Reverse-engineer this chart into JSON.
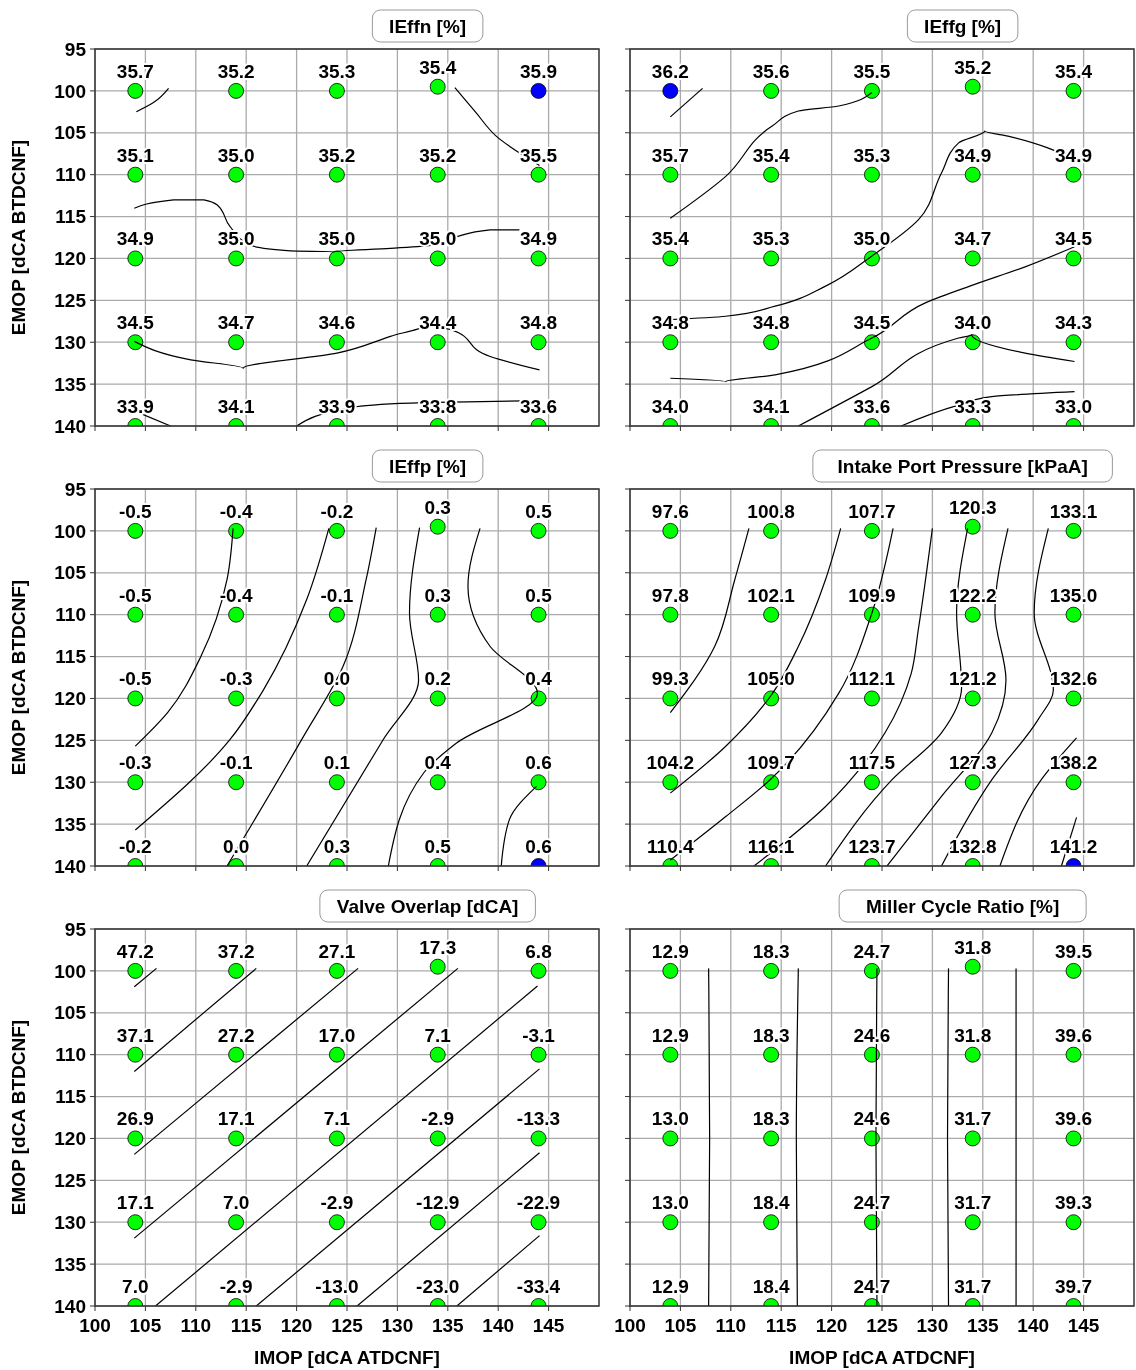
{
  "chart_data": [
    {
      "type": "scatter",
      "title": "IEffn [%]",
      "ylabel": "EMOP [dCA BTDCNF]",
      "xlim": [
        100,
        150
      ],
      "xticks": [
        100,
        105,
        110,
        115,
        120,
        125,
        130,
        135,
        140,
        145
      ],
      "ylim": [
        140,
        95
      ],
      "yticks": [
        95,
        100,
        105,
        110,
        115,
        120,
        125,
        130,
        135,
        140
      ],
      "grid": true,
      "tick_labels": "y",
      "marker": "circle",
      "series": [
        {
          "color": "#00ff00",
          "x": [
            104,
            114,
            124,
            134,
            104,
            114,
            124,
            134,
            144,
            104,
            114,
            124,
            134,
            144,
            104,
            114,
            124,
            134,
            144,
            104,
            114,
            124,
            134,
            144
          ],
          "values": [
            100,
            100,
            100,
            99.5,
            110,
            110,
            110,
            110,
            110,
            120,
            120,
            120,
            120,
            120,
            130,
            130,
            130,
            130,
            130,
            140,
            140,
            140,
            140,
            140
          ]
        },
        {
          "color": "#0000ff",
          "x": [
            144
          ],
          "values": [
            100
          ]
        },
        {
          "type": "line",
          "color": "#000000",
          "marker": "none",
          "x": [
            104.1,
            105.8,
            107.3
          ],
          "values": [
            102.5,
            101.4,
            99.7
          ]
        },
        {
          "type": "line",
          "color": "#000000",
          "marker": "none",
          "x": [
            135.7,
            137.8,
            139.8,
            144.1
          ],
          "values": [
            99.6,
            102.6,
            105.4,
            108.9
          ]
        },
        {
          "type": "line",
          "color": "#000000",
          "marker": "none",
          "x": [
            103.9,
            107.8,
            110.8,
            112.1,
            113.4,
            115.4,
            119.4,
            123.8,
            129.3,
            133.5,
            135.9,
            139.2,
            142.1
          ],
          "values": [
            114.0,
            113.0,
            113.0,
            113.6,
            116.2,
            118.4,
            119.1,
            119.2,
            118.8,
            118.4,
            117.4,
            116.6,
            116.6
          ]
        },
        {
          "type": "line",
          "color": "#000000",
          "marker": "none",
          "x": [
            103.9,
            109.5,
            114.7,
            124.0,
            129.3,
            132.6,
            135.3,
            139.2,
            144.1
          ],
          "values": [
            129.9,
            132.1,
            133.1,
            131.3,
            129.3,
            128.0,
            128.5,
            131.7,
            133.3
          ]
        },
        {
          "type": "line",
          "color": "#000000",
          "marker": "none",
          "x": [
            103.9,
            107.5
          ],
          "values": [
            138.2,
            140
          ]
        },
        {
          "type": "line",
          "color": "#000000",
          "marker": "none",
          "x": [
            120.0,
            125.9,
            132.6,
            142.5
          ],
          "values": [
            140,
            137.7,
            137.2,
            137.0
          ]
        }
      ],
      "annotations": [
        {
          "text": "35.7",
          "x": 104,
          "y": 100
        },
        {
          "text": "35.2",
          "x": 114,
          "y": 100
        },
        {
          "text": "35.3",
          "x": 124,
          "y": 100
        },
        {
          "text": "35.4",
          "x": 134,
          "y": 99.5
        },
        {
          "text": "35.9",
          "x": 144,
          "y": 100
        },
        {
          "text": "35.1",
          "x": 104,
          "y": 110
        },
        {
          "text": "35.0",
          "x": 114,
          "y": 110
        },
        {
          "text": "35.2",
          "x": 124,
          "y": 110
        },
        {
          "text": "35.2",
          "x": 134,
          "y": 110
        },
        {
          "text": "35.5",
          "x": 144,
          "y": 110
        },
        {
          "text": "34.9",
          "x": 104,
          "y": 120
        },
        {
          "text": "35.0",
          "x": 114,
          "y": 120
        },
        {
          "text": "35.0",
          "x": 124,
          "y": 120
        },
        {
          "text": "35.0",
          "x": 134,
          "y": 120
        },
        {
          "text": "34.9",
          "x": 144,
          "y": 120
        },
        {
          "text": "34.5",
          "x": 104,
          "y": 130
        },
        {
          "text": "34.7",
          "x": 114,
          "y": 130
        },
        {
          "text": "34.6",
          "x": 124,
          "y": 130
        },
        {
          "text": "34.4",
          "x": 134,
          "y": 130
        },
        {
          "text": "34.8",
          "x": 144,
          "y": 130
        },
        {
          "text": "33.9",
          "x": 104,
          "y": 140
        },
        {
          "text": "34.1",
          "x": 114,
          "y": 140
        },
        {
          "text": "33.9",
          "x": 124,
          "y": 140
        },
        {
          "text": "33.8",
          "x": 134,
          "y": 140
        },
        {
          "text": "33.6",
          "x": 144,
          "y": 140
        }
      ]
    },
    {
      "type": "scatter",
      "title": "IEffg [%]",
      "xlim": [
        100,
        150
      ],
      "xticks": [
        100,
        105,
        110,
        115,
        120,
        125,
        130,
        135,
        140,
        145
      ],
      "ylim": [
        140,
        95
      ],
      "yticks": [
        95,
        100,
        105,
        110,
        115,
        120,
        125,
        130,
        135,
        140
      ],
      "grid": true,
      "tick_labels": false,
      "marker": "circle",
      "series": [
        {
          "color": "#00ff00",
          "x": [
            114,
            124,
            134,
            144,
            104,
            114,
            124,
            134,
            144,
            104,
            114,
            124,
            134,
            144,
            104,
            114,
            124,
            134,
            144,
            104,
            114,
            124,
            134,
            144
          ],
          "values": [
            100,
            100,
            99.5,
            100,
            110,
            110,
            110,
            110,
            110,
            120,
            120,
            120,
            120,
            120,
            130,
            130,
            130,
            130,
            130,
            140,
            140,
            140,
            140,
            140
          ]
        },
        {
          "color": "#0000ff",
          "x": [
            104
          ],
          "values": [
            100
          ]
        },
        {
          "type": "line",
          "color": "#000000",
          "marker": "none",
          "x": [
            104.0,
            107.2
          ],
          "values": [
            103.1,
            99.7
          ]
        },
        {
          "type": "line",
          "color": "#000000",
          "marker": "none",
          "x": [
            104.0,
            109.5,
            114.1,
            116.7,
            120.7,
            124.0
          ],
          "values": [
            115.2,
            110.2,
            104.2,
            102.4,
            101.8,
            100.2
          ]
        },
        {
          "type": "line",
          "color": "#000000",
          "marker": "none",
          "x": [
            104.0,
            109.5,
            114.4,
            119.4,
            124.0,
            128.6,
            130.9,
            132.6,
            135.2,
            137.5,
            144.1
          ],
          "values": [
            127.3,
            126.9,
            125.7,
            123.3,
            119.7,
            115.4,
            109.8,
            106.2,
            104.8,
            105.4,
            108.2
          ]
        },
        {
          "type": "line",
          "color": "#000000",
          "marker": "none",
          "x": [
            104.0,
            109.5,
            114.4,
            124.0,
            129.3,
            134.2,
            139.2,
            144.1
          ],
          "values": [
            134.3,
            134.7,
            133.9,
            129.5,
            125.3,
            123.1,
            121.0,
            118.6
          ]
        },
        {
          "type": "line",
          "color": "#000000",
          "marker": "none",
          "x": [
            116.7,
            124.0,
            132.6,
            133.9,
            139.2,
            144.1
          ],
          "values": [
            140,
            135.3,
            129.5,
            129.1,
            131.3,
            132.3
          ]
        },
        {
          "type": "line",
          "color": "#000000",
          "marker": "none",
          "x": [
            126.9,
            132.6,
            135.9,
            144.1
          ],
          "values": [
            140,
            137.5,
            136.5,
            135.9
          ]
        }
      ],
      "annotations": [
        {
          "text": "36.2",
          "x": 104,
          "y": 100
        },
        {
          "text": "35.6",
          "x": 114,
          "y": 100
        },
        {
          "text": "35.5",
          "x": 124,
          "y": 100
        },
        {
          "text": "35.2",
          "x": 134,
          "y": 99.5
        },
        {
          "text": "35.4",
          "x": 144,
          "y": 100
        },
        {
          "text": "35.7",
          "x": 104,
          "y": 110
        },
        {
          "text": "35.4",
          "x": 114,
          "y": 110
        },
        {
          "text": "35.3",
          "x": 124,
          "y": 110
        },
        {
          "text": "34.9",
          "x": 134,
          "y": 110
        },
        {
          "text": "34.9",
          "x": 144,
          "y": 110
        },
        {
          "text": "35.4",
          "x": 104,
          "y": 120
        },
        {
          "text": "35.3",
          "x": 114,
          "y": 120
        },
        {
          "text": "35.0",
          "x": 124,
          "y": 120
        },
        {
          "text": "34.7",
          "x": 134,
          "y": 120
        },
        {
          "text": "34.5",
          "x": 144,
          "y": 120
        },
        {
          "text": "34.8",
          "x": 104,
          "y": 130
        },
        {
          "text": "34.8",
          "x": 114,
          "y": 130
        },
        {
          "text": "34.5",
          "x": 124,
          "y": 130
        },
        {
          "text": "34.0",
          "x": 134,
          "y": 130
        },
        {
          "text": "34.3",
          "x": 144,
          "y": 130
        },
        {
          "text": "34.0",
          "x": 104,
          "y": 140
        },
        {
          "text": "34.1",
          "x": 114,
          "y": 140
        },
        {
          "text": "33.6",
          "x": 124,
          "y": 140
        },
        {
          "text": "33.3",
          "x": 134,
          "y": 140
        },
        {
          "text": "33.0",
          "x": 144,
          "y": 140
        }
      ]
    },
    {
      "type": "scatter",
      "title": "IEffp [%]",
      "ylabel": "EMOP [dCA BTDCNF]",
      "xlim": [
        100,
        150
      ],
      "xticks": [
        100,
        105,
        110,
        115,
        120,
        125,
        130,
        135,
        140,
        145
      ],
      "ylim": [
        140,
        95
      ],
      "yticks": [
        95,
        100,
        105,
        110,
        115,
        120,
        125,
        130,
        135,
        140
      ],
      "grid": true,
      "tick_labels": "y",
      "marker": "circle",
      "series": [
        {
          "color": "#00ff00",
          "x": [
            104,
            114,
            124,
            134,
            144,
            104,
            114,
            124,
            134,
            144,
            104,
            114,
            124,
            134,
            144,
            104,
            114,
            124,
            134,
            144,
            104,
            114,
            124,
            134
          ],
          "values": [
            100,
            100,
            100,
            99.5,
            100,
            110,
            110,
            110,
            110,
            110,
            120,
            120,
            120,
            120,
            120,
            130,
            130,
            130,
            130,
            130,
            140,
            140,
            140,
            140
          ]
        },
        {
          "color": "#0000ff",
          "x": [
            144
          ],
          "values": [
            140
          ]
        },
        {
          "type": "line",
          "color": "#000000",
          "marker": "none",
          "x": [
            113.7,
            113.1,
            110.5,
            107.2,
            104.0
          ],
          "values": [
            99.7,
            105.8,
            115.0,
            121.7,
            125.7
          ]
        },
        {
          "type": "line",
          "color": "#000000",
          "marker": "none",
          "x": [
            123.2,
            121.0,
            116.7,
            113.4,
            104.0
          ],
          "values": [
            99.7,
            108.2,
            119.0,
            124.9,
            135.7
          ]
        },
        {
          "type": "line",
          "color": "#000000",
          "marker": "none",
          "x": [
            127.9,
            126.9,
            124.6,
            120.7,
            113.1
          ],
          "values": [
            99.6,
            105.8,
            116.2,
            124.5,
            140
          ]
        },
        {
          "type": "line",
          "color": "#000000",
          "marker": "none",
          "x": [
            132.2,
            131.2,
            132.1,
            128.6,
            121.0
          ],
          "values": [
            99.6,
            109.8,
            117.8,
            124.9,
            140
          ]
        },
        {
          "type": "line",
          "color": "#000000",
          "marker": "none",
          "x": [
            138.2,
            137.0,
            139.2,
            143.9,
            135.9,
            132.6,
            129.1
          ],
          "values": [
            99.7,
            106.6,
            113.8,
            119.4,
            125.3,
            128.9,
            140
          ]
        },
        {
          "type": "line",
          "color": "#000000",
          "marker": "none",
          "x": [
            143.8,
            141.1,
            140.3
          ],
          "values": [
            130.5,
            134.5,
            140
          ]
        }
      ],
      "annotations": [
        {
          "text": "-0.5",
          "x": 104,
          "y": 100
        },
        {
          "text": "-0.4",
          "x": 114,
          "y": 100
        },
        {
          "text": "-0.2",
          "x": 124,
          "y": 100
        },
        {
          "text": "0.3",
          "x": 134,
          "y": 99.5
        },
        {
          "text": "0.5",
          "x": 144,
          "y": 100
        },
        {
          "text": "-0.5",
          "x": 104,
          "y": 110
        },
        {
          "text": "-0.4",
          "x": 114,
          "y": 110
        },
        {
          "text": "-0.1",
          "x": 124,
          "y": 110
        },
        {
          "text": "0.3",
          "x": 134,
          "y": 110
        },
        {
          "text": "0.5",
          "x": 144,
          "y": 110
        },
        {
          "text": "-0.5",
          "x": 104,
          "y": 120
        },
        {
          "text": "-0.3",
          "x": 114,
          "y": 120
        },
        {
          "text": "0.0",
          "x": 124,
          "y": 120
        },
        {
          "text": "0.2",
          "x": 134,
          "y": 120
        },
        {
          "text": "0.4",
          "x": 144,
          "y": 120
        },
        {
          "text": "-0.3",
          "x": 104,
          "y": 130
        },
        {
          "text": "-0.1",
          "x": 114,
          "y": 130
        },
        {
          "text": "0.1",
          "x": 124,
          "y": 130
        },
        {
          "text": "0.4",
          "x": 134,
          "y": 130
        },
        {
          "text": "0.6",
          "x": 144,
          "y": 130
        },
        {
          "text": "-0.2",
          "x": 104,
          "y": 140
        },
        {
          "text": "0.0",
          "x": 114,
          "y": 140
        },
        {
          "text": "0.3",
          "x": 124,
          "y": 140
        },
        {
          "text": "0.5",
          "x": 134,
          "y": 140
        },
        {
          "text": "0.6",
          "x": 144,
          "y": 140
        }
      ]
    },
    {
      "type": "scatter",
      "title": "Intake Port Pressure [kPaA]",
      "xlim": [
        100,
        150
      ],
      "xticks": [
        100,
        105,
        110,
        115,
        120,
        125,
        130,
        135,
        140,
        145
      ],
      "ylim": [
        140,
        95
      ],
      "yticks": [
        95,
        100,
        105,
        110,
        115,
        120,
        125,
        130,
        135,
        140
      ],
      "grid": true,
      "tick_labels": false,
      "marker": "circle",
      "series": [
        {
          "color": "#00ff00",
          "x": [
            104,
            114,
            124,
            134,
            144,
            104,
            114,
            124,
            134,
            144,
            104,
            114,
            124,
            134,
            144,
            104,
            114,
            124,
            134,
            144,
            104,
            114,
            124,
            134
          ],
          "values": [
            100,
            100,
            100,
            99.5,
            100,
            110,
            110,
            110,
            110,
            110,
            120,
            120,
            120,
            120,
            120,
            130,
            130,
            130,
            130,
            130,
            140,
            140,
            140,
            140
          ]
        },
        {
          "color": "#0000ff",
          "x": [
            144
          ],
          "values": [
            140
          ]
        },
        {
          "type": "line",
          "color": "#000000",
          "marker": "none",
          "x": [
            111.8,
            110.4,
            108.4,
            104.0
          ],
          "values": [
            99.7,
            105.8,
            113.8,
            121.7
          ]
        },
        {
          "type": "line",
          "color": "#000000",
          "marker": "none",
          "x": [
            120.9,
            119.4,
            116.7,
            113.9,
            109.5,
            104.0
          ],
          "values": [
            99.7,
            105.8,
            113.8,
            119.8,
            125.7,
            131.3
          ]
        },
        {
          "type": "line",
          "color": "#000000",
          "marker": "none",
          "x": [
            126.1,
            124.0,
            120.7,
            113.9,
            109.5,
            104.0
          ],
          "values": [
            99.7,
            109.8,
            119.4,
            129.7,
            134.1,
            139.3
          ]
        },
        {
          "type": "line",
          "color": "#000000",
          "marker": "none",
          "x": [
            130.0,
            128.6,
            127.9,
            125.3,
            119.4,
            112.3
          ],
          "values": [
            99.7,
            111.8,
            117.0,
            124.1,
            132.9,
            140
          ]
        },
        {
          "type": "line",
          "color": "#000000",
          "marker": "none",
          "x": [
            133.5,
            132.4,
            132.9,
            130.9,
            126.0,
            119.4
          ],
          "values": [
            99.7,
            109.8,
            118.6,
            124.1,
            129.7,
            140
          ]
        },
        {
          "type": "line",
          "color": "#000000",
          "marker": "none",
          "x": [
            137.5,
            136.2,
            137.3,
            135.9,
            130.9,
            125.5
          ],
          "values": [
            99.7,
            109.8,
            117.8,
            124.1,
            131.7,
            140
          ]
        },
        {
          "type": "line",
          "color": "#000000",
          "marker": "none",
          "x": [
            141.5,
            140.1,
            142.0,
            140.5,
            135.9,
            130.9
          ],
          "values": [
            99.7,
            109.8,
            119.0,
            122.5,
            129.7,
            140
          ]
        },
        {
          "type": "line",
          "color": "#000000",
          "marker": "none",
          "x": [
            144.3,
            140.8,
            136.7
          ],
          "values": [
            124.7,
            129.7,
            140
          ]
        },
        {
          "type": "line",
          "color": "#000000",
          "marker": "none",
          "x": [
            144.3,
            142.8
          ],
          "values": [
            134.2,
            140
          ]
        }
      ],
      "annotations": [
        {
          "text": "97.6",
          "x": 104,
          "y": 100
        },
        {
          "text": "100.8",
          "x": 114,
          "y": 100
        },
        {
          "text": "107.7",
          "x": 124,
          "y": 100
        },
        {
          "text": "120.3",
          "x": 134,
          "y": 99.5
        },
        {
          "text": "133.1",
          "x": 144,
          "y": 100
        },
        {
          "text": "97.8",
          "x": 104,
          "y": 110
        },
        {
          "text": "102.1",
          "x": 114,
          "y": 110
        },
        {
          "text": "109.9",
          "x": 124,
          "y": 110
        },
        {
          "text": "122.2",
          "x": 134,
          "y": 110
        },
        {
          "text": "135.0",
          "x": 144,
          "y": 110
        },
        {
          "text": "99.3",
          "x": 104,
          "y": 120
        },
        {
          "text": "105.0",
          "x": 114,
          "y": 120
        },
        {
          "text": "112.1",
          "x": 124,
          "y": 120
        },
        {
          "text": "121.2",
          "x": 134,
          "y": 120
        },
        {
          "text": "132.6",
          "x": 144,
          "y": 120
        },
        {
          "text": "104.2",
          "x": 104,
          "y": 130
        },
        {
          "text": "109.7",
          "x": 114,
          "y": 130
        },
        {
          "text": "117.5",
          "x": 124,
          "y": 130
        },
        {
          "text": "127.3",
          "x": 134,
          "y": 130
        },
        {
          "text": "138.2",
          "x": 144,
          "y": 130
        },
        {
          "text": "110.4",
          "x": 104,
          "y": 140
        },
        {
          "text": "116.1",
          "x": 114,
          "y": 140
        },
        {
          "text": "123.7",
          "x": 124,
          "y": 140
        },
        {
          "text": "132.8",
          "x": 134,
          "y": 140
        },
        {
          "text": "141.2",
          "x": 144,
          "y": 140
        }
      ]
    },
    {
      "type": "scatter",
      "title": "Valve Overlap [dCA]",
      "xlabel": "IMOP [dCA ATDCNF]",
      "ylabel": "EMOP [dCA BTDCNF]",
      "xlim": [
        100,
        150
      ],
      "xticks": [
        100,
        105,
        110,
        115,
        120,
        125,
        130,
        135,
        140,
        145
      ],
      "ylim": [
        140,
        95
      ],
      "yticks": [
        95,
        100,
        105,
        110,
        115,
        120,
        125,
        130,
        135,
        140
      ],
      "grid": true,
      "marker": "circle",
      "series": [
        {
          "color": "#00ff00",
          "x": [
            104,
            114,
            124,
            134,
            144,
            104,
            114,
            124,
            134,
            144,
            104,
            114,
            124,
            134,
            144,
            104,
            114,
            124,
            134,
            144,
            104,
            114,
            124,
            134,
            144
          ],
          "values": [
            100,
            100,
            100,
            99.5,
            100,
            110,
            110,
            110,
            110,
            110,
            120,
            120,
            120,
            120,
            120,
            130,
            130,
            130,
            130,
            130,
            140,
            140,
            140,
            140,
            140
          ]
        },
        {
          "type": "line",
          "color": "#000000",
          "marker": "none",
          "x": [
            103.9,
            106.1
          ],
          "values": [
            101.9,
            99.7
          ]
        },
        {
          "type": "line",
          "color": "#000000",
          "marker": "none",
          "x": [
            103.9,
            116.0
          ],
          "values": [
            112.0,
            99.7
          ]
        },
        {
          "type": "line",
          "color": "#000000",
          "marker": "none",
          "x": [
            103.9,
            126.1
          ],
          "values": [
            121.9,
            99.7
          ]
        },
        {
          "type": "line",
          "color": "#000000",
          "marker": "none",
          "x": [
            103.9,
            136.0
          ],
          "values": [
            131.9,
            99.7
          ]
        },
        {
          "type": "line",
          "color": "#000000",
          "marker": "none",
          "x": [
            106.0,
            143.9
          ],
          "values": [
            140,
            101.8
          ]
        },
        {
          "type": "line",
          "color": "#000000",
          "marker": "none",
          "x": [
            116.0,
            144.1
          ],
          "values": [
            140,
            111.7
          ]
        },
        {
          "type": "line",
          "color": "#000000",
          "marker": "none",
          "x": [
            126.0,
            144.1
          ],
          "values": [
            140,
            121.7
          ]
        },
        {
          "type": "line",
          "color": "#000000",
          "marker": "none",
          "x": [
            135.9,
            144.1
          ],
          "values": [
            140,
            131.6
          ]
        }
      ],
      "annotations": [
        {
          "text": "47.2",
          "x": 104,
          "y": 100
        },
        {
          "text": "37.2",
          "x": 114,
          "y": 100
        },
        {
          "text": "27.1",
          "x": 124,
          "y": 100
        },
        {
          "text": "17.3",
          "x": 134,
          "y": 99.5
        },
        {
          "text": "6.8",
          "x": 144,
          "y": 100
        },
        {
          "text": "37.1",
          "x": 104,
          "y": 110
        },
        {
          "text": "27.2",
          "x": 114,
          "y": 110
        },
        {
          "text": "17.0",
          "x": 124,
          "y": 110
        },
        {
          "text": "7.1",
          "x": 134,
          "y": 110
        },
        {
          "text": "-3.1",
          "x": 144,
          "y": 110
        },
        {
          "text": "26.9",
          "x": 104,
          "y": 120
        },
        {
          "text": "17.1",
          "x": 114,
          "y": 120
        },
        {
          "text": "7.1",
          "x": 124,
          "y": 120
        },
        {
          "text": "-2.9",
          "x": 134,
          "y": 120
        },
        {
          "text": "-13.3",
          "x": 144,
          "y": 120
        },
        {
          "text": "17.1",
          "x": 104,
          "y": 130
        },
        {
          "text": "7.0",
          "x": 114,
          "y": 130
        },
        {
          "text": "-2.9",
          "x": 124,
          "y": 130
        },
        {
          "text": "-12.9",
          "x": 134,
          "y": 130
        },
        {
          "text": "-22.9",
          "x": 144,
          "y": 130
        },
        {
          "text": "7.0",
          "x": 104,
          "y": 140
        },
        {
          "text": "-2.9",
          "x": 114,
          "y": 140
        },
        {
          "text": "-13.0",
          "x": 124,
          "y": 140
        },
        {
          "text": "-23.0",
          "x": 134,
          "y": 140
        },
        {
          "text": "-33.4",
          "x": 144,
          "y": 140
        }
      ]
    },
    {
      "type": "scatter",
      "title": "Miller Cycle Ratio [%]",
      "xlabel": "IMOP [dCA ATDCNF]",
      "xlim": [
        100,
        150
      ],
      "xticks": [
        100,
        105,
        110,
        115,
        120,
        125,
        130,
        135,
        140,
        145
      ],
      "ylim": [
        140,
        95
      ],
      "yticks": [
        95,
        100,
        105,
        110,
        115,
        120,
        125,
        130,
        135,
        140
      ],
      "grid": true,
      "tick_labels": "x",
      "marker": "circle",
      "series": [
        {
          "color": "#00ff00",
          "x": [
            104,
            114,
            124,
            134,
            144,
            104,
            114,
            124,
            134,
            144,
            104,
            114,
            124,
            134,
            144,
            104,
            114,
            124,
            134,
            144,
            104,
            114,
            124,
            134,
            144
          ],
          "values": [
            100,
            100,
            100,
            99.5,
            100,
            110,
            110,
            110,
            110,
            110,
            120,
            120,
            120,
            120,
            120,
            130,
            130,
            130,
            130,
            130,
            140,
            140,
            140,
            140,
            140
          ]
        },
        {
          "type": "line",
          "color": "#000000",
          "marker": "none",
          "x": [
            107.8,
            107.9,
            107.8
          ],
          "values": [
            99.7,
            120,
            140
          ]
        },
        {
          "type": "line",
          "color": "#000000",
          "marker": "none",
          "x": [
            116.7,
            116.5,
            116.6
          ],
          "values": [
            99.7,
            120,
            140
          ]
        },
        {
          "type": "line",
          "color": "#000000",
          "marker": "none",
          "x": [
            124.5,
            124.4,
            124.5
          ],
          "values": [
            99.7,
            120,
            140
          ]
        },
        {
          "type": "line",
          "color": "#000000",
          "marker": "none",
          "x": [
            131.6,
            131.5,
            131.6
          ],
          "values": [
            99.7,
            120,
            140
          ]
        },
        {
          "type": "line",
          "color": "#000000",
          "marker": "none",
          "x": [
            138.3,
            138.3
          ],
          "values": [
            99.7,
            140
          ]
        }
      ],
      "annotations": [
        {
          "text": "12.9",
          "x": 104,
          "y": 100
        },
        {
          "text": "18.3",
          "x": 114,
          "y": 100
        },
        {
          "text": "24.7",
          "x": 124,
          "y": 100
        },
        {
          "text": "31.8",
          "x": 134,
          "y": 99.5
        },
        {
          "text": "39.5",
          "x": 144,
          "y": 100
        },
        {
          "text": "12.9",
          "x": 104,
          "y": 110
        },
        {
          "text": "18.3",
          "x": 114,
          "y": 110
        },
        {
          "text": "24.6",
          "x": 124,
          "y": 110
        },
        {
          "text": "31.8",
          "x": 134,
          "y": 110
        },
        {
          "text": "39.6",
          "x": 144,
          "y": 110
        },
        {
          "text": "13.0",
          "x": 104,
          "y": 120
        },
        {
          "text": "18.3",
          "x": 114,
          "y": 120
        },
        {
          "text": "24.6",
          "x": 124,
          "y": 120
        },
        {
          "text": "31.7",
          "x": 134,
          "y": 120
        },
        {
          "text": "39.6",
          "x": 144,
          "y": 120
        },
        {
          "text": "13.0",
          "x": 104,
          "y": 130
        },
        {
          "text": "18.4",
          "x": 114,
          "y": 130
        },
        {
          "text": "24.7",
          "x": 124,
          "y": 130
        },
        {
          "text": "31.7",
          "x": 134,
          "y": 130
        },
        {
          "text": "39.3",
          "x": 144,
          "y": 130
        },
        {
          "text": "12.9",
          "x": 104,
          "y": 140
        },
        {
          "text": "18.4",
          "x": 114,
          "y": 140
        },
        {
          "text": "24.7",
          "x": 124,
          "y": 140
        },
        {
          "text": "31.7",
          "x": 134,
          "y": 140
        },
        {
          "text": "39.7",
          "x": 144,
          "y": 140
        }
      ]
    }
  ]
}
